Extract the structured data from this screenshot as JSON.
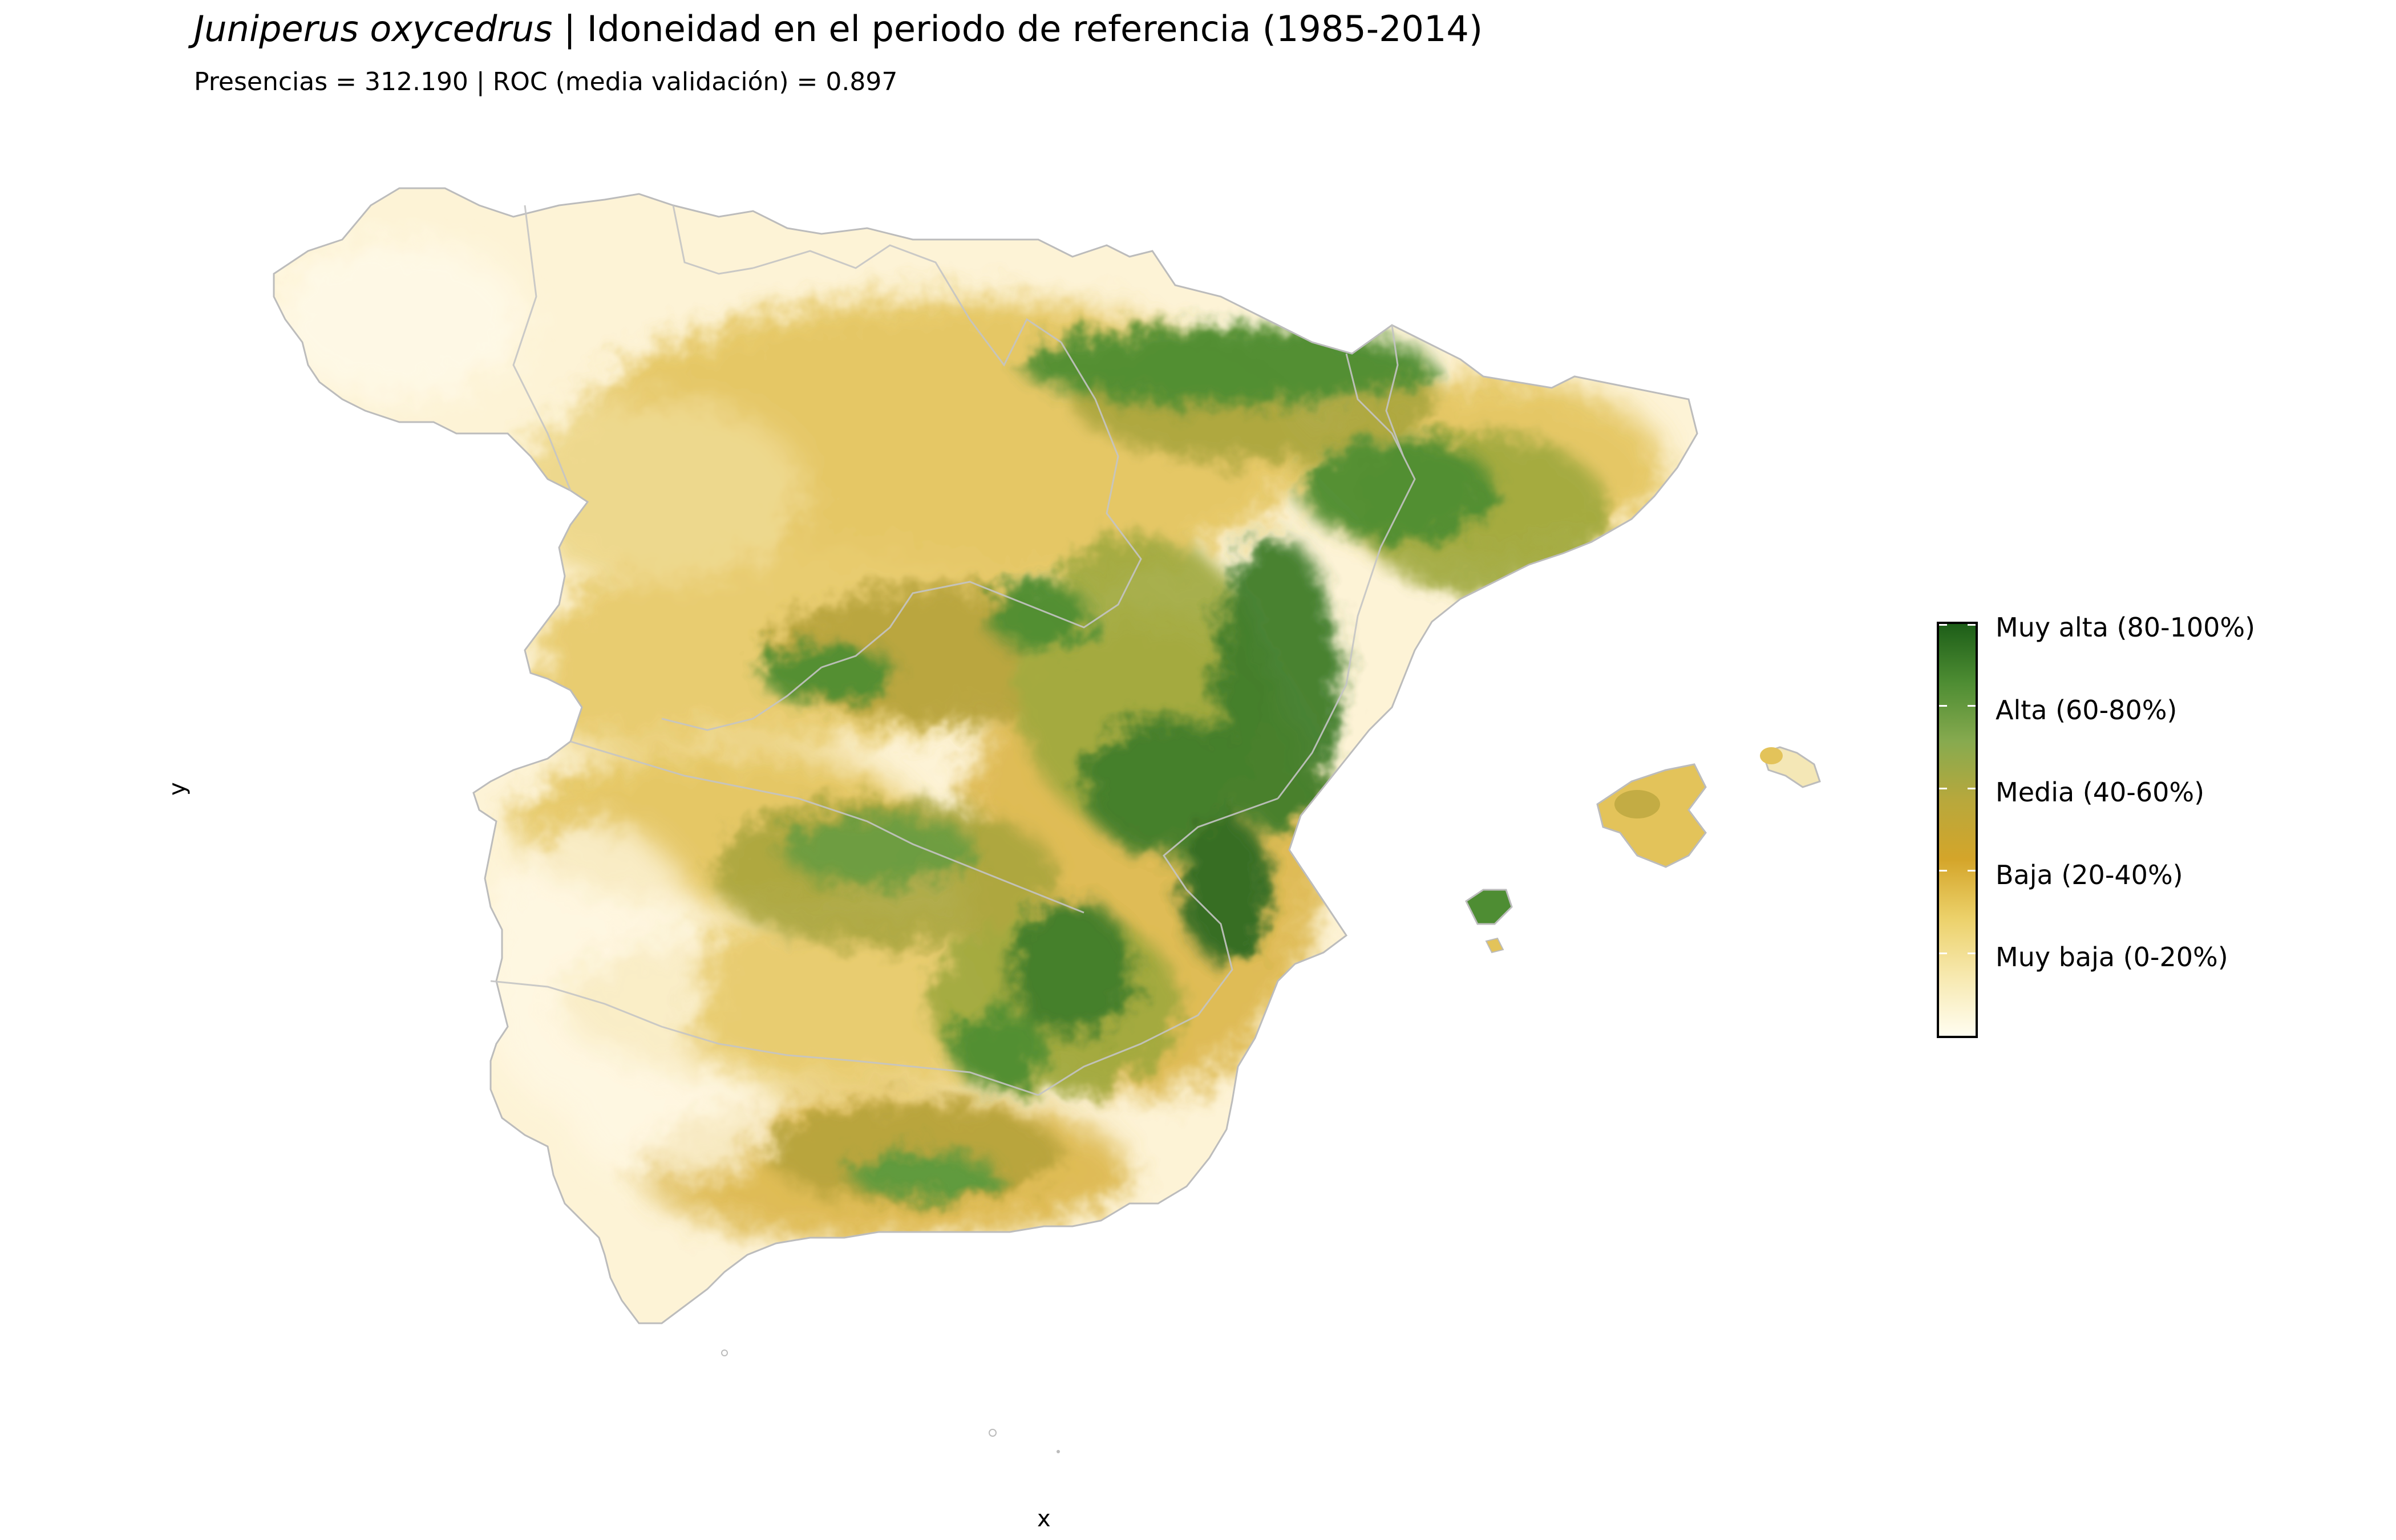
{
  "title": {
    "species": "Juniperus oxycedrus",
    "rest": " | Idoneidad en el periodo de referencia (1985-2014)"
  },
  "subtitle": "Presencias = 312.190  |  ROC (media validación) = 0.897",
  "axes": {
    "x_label": "x",
    "y_label": "y"
  },
  "legend": {
    "colors": [
      "#fffdf0",
      "#f7e9b0",
      "#ecd16a",
      "#d4a52a",
      "#b8a83c",
      "#87aa4f",
      "#4e8d33",
      "#1d5e18"
    ],
    "items": [
      {
        "label": "Muy alta (80-100%)",
        "value": 90,
        "color": "#1d5e18"
      },
      {
        "label": "Alta (60-80%)",
        "value": 70,
        "color": "#5a9a3c"
      },
      {
        "label": "Media (40-60%)",
        "value": 50,
        "color": "#b5a23a"
      },
      {
        "label": "Baja (20-40%)",
        "value": 30,
        "color": "#d4a52a"
      },
      {
        "label": "Muy baja (0-20%)",
        "value": 10,
        "color": "#f1dc85"
      }
    ]
  },
  "map": {
    "border_color": "#bcbcbc",
    "low_color": "#fdf3d6",
    "regions": [
      "Peninsula",
      "Mallorca",
      "Menorca",
      "Ibiza",
      "Formentera"
    ]
  }
}
